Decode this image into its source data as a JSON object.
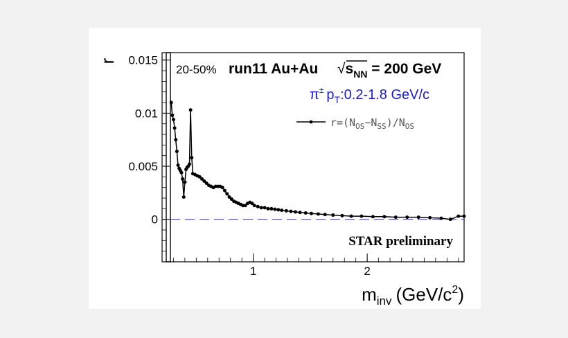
{
  "chart_data": {
    "type": "line",
    "title": "",
    "ylabel": "r",
    "xlabel": {
      "main": "m",
      "sub": "inv",
      "units_prefix": "(GeV/c",
      "units_sup": "2",
      "units_suffix": ")"
    },
    "xlim": [
      0.2,
      2.85
    ],
    "ylim": [
      -0.004,
      0.0157
    ],
    "xticks": [
      {
        "value": 1,
        "label": "1"
      },
      {
        "value": 2,
        "label": "2"
      }
    ],
    "yticks": [
      {
        "value": 0,
        "label": "0"
      },
      {
        "value": 0.005,
        "label": "0.005"
      },
      {
        "value": 0.01,
        "label": "0.01"
      },
      {
        "value": 0.015,
        "label": "0.015"
      }
    ],
    "reference_line": {
      "y": 0,
      "style": "dashed",
      "color": "#3a3aa8"
    },
    "annotations": {
      "centrality": "20-50%",
      "system_prefix": "run11 Au+Au",
      "sqrt_sym": "√",
      "energy_s": "s",
      "energy_sub": "NN",
      "energy_suffix": " = 200 GeV",
      "particle": "π",
      "particle_sup": "±",
      "pt_p": "p",
      "pt_sub": "T",
      "pt_range": ":0.2-1.8 GeV/c",
      "preliminary": "STAR preliminary"
    },
    "legend": {
      "placement": "top-right",
      "parts": [
        {
          "text": "r=(N",
          "sub": false
        },
        {
          "text": "OS",
          "sub": true
        },
        {
          "text": "−N",
          "sub": false
        },
        {
          "text": "SS",
          "sub": true
        },
        {
          "text": ")/N",
          "sub": false
        },
        {
          "text": "OS",
          "sub": true
        }
      ]
    },
    "series": [
      {
        "name": "r=(NOS-NSS)/NOS",
        "color": "#000000",
        "marker": "circle",
        "points": [
          [
            0.28,
            0.011
          ],
          [
            0.29,
            0.0098
          ],
          [
            0.3,
            0.0094
          ],
          [
            0.31,
            0.0086
          ],
          [
            0.32,
            0.0075
          ],
          [
            0.33,
            0.0064
          ],
          [
            0.34,
            0.0051
          ],
          [
            0.35,
            0.0048
          ],
          [
            0.36,
            0.0046
          ],
          [
            0.37,
            0.0044
          ],
          [
            0.38,
            0.0038
          ],
          [
            0.39,
            0.0021
          ],
          [
            0.4,
            0.0035
          ],
          [
            0.41,
            0.0047
          ],
          [
            0.42,
            0.0049
          ],
          [
            0.43,
            0.005
          ],
          [
            0.44,
            0.0052
          ],
          [
            0.45,
            0.0103
          ],
          [
            0.46,
            0.0058
          ],
          [
            0.47,
            0.0043
          ],
          [
            0.49,
            0.0042
          ],
          [
            0.51,
            0.0041
          ],
          [
            0.53,
            0.004
          ],
          [
            0.55,
            0.0038
          ],
          [
            0.57,
            0.0036
          ],
          [
            0.59,
            0.0034
          ],
          [
            0.61,
            0.0032
          ],
          [
            0.63,
            0.0031
          ],
          [
            0.65,
            0.003
          ],
          [
            0.67,
            0.0031
          ],
          [
            0.69,
            0.0031
          ],
          [
            0.71,
            0.0031
          ],
          [
            0.73,
            0.003
          ],
          [
            0.75,
            0.0027
          ],
          [
            0.77,
            0.0024
          ],
          [
            0.79,
            0.0021
          ],
          [
            0.81,
            0.0019
          ],
          [
            0.83,
            0.0017
          ],
          [
            0.85,
            0.0016
          ],
          [
            0.87,
            0.0015
          ],
          [
            0.89,
            0.0014
          ],
          [
            0.91,
            0.0013
          ],
          [
            0.93,
            0.0013
          ],
          [
            0.95,
            0.0015
          ],
          [
            0.97,
            0.0016
          ],
          [
            0.99,
            0.0015
          ],
          [
            1.01,
            0.0013
          ],
          [
            1.04,
            0.0012
          ],
          [
            1.07,
            0.0011
          ],
          [
            1.1,
            0.0011
          ],
          [
            1.13,
            0.001
          ],
          [
            1.16,
            0.001
          ],
          [
            1.19,
            0.00095
          ],
          [
            1.22,
            0.0009
          ],
          [
            1.25,
            0.00085
          ],
          [
            1.29,
            0.0008
          ],
          [
            1.33,
            0.00075
          ],
          [
            1.37,
            0.0007
          ],
          [
            1.41,
            0.00065
          ],
          [
            1.46,
            0.0006
          ],
          [
            1.51,
            0.00055
          ],
          [
            1.57,
            0.0005
          ],
          [
            1.63,
            0.00045
          ],
          [
            1.7,
            0.0004
          ],
          [
            1.78,
            0.00035
          ],
          [
            1.86,
            0.0003
          ],
          [
            1.95,
            0.0003
          ],
          [
            2.05,
            0.00025
          ],
          [
            2.15,
            0.00025
          ],
          [
            2.25,
            0.0002
          ],
          [
            2.35,
            0.0002
          ],
          [
            2.45,
            0.0002
          ],
          [
            2.55,
            0.00015
          ],
          [
            2.65,
            0.0001
          ],
          [
            2.73,
            0.0
          ],
          [
            2.8,
            0.0003
          ],
          [
            2.85,
            0.0003
          ]
        ]
      }
    ]
  }
}
